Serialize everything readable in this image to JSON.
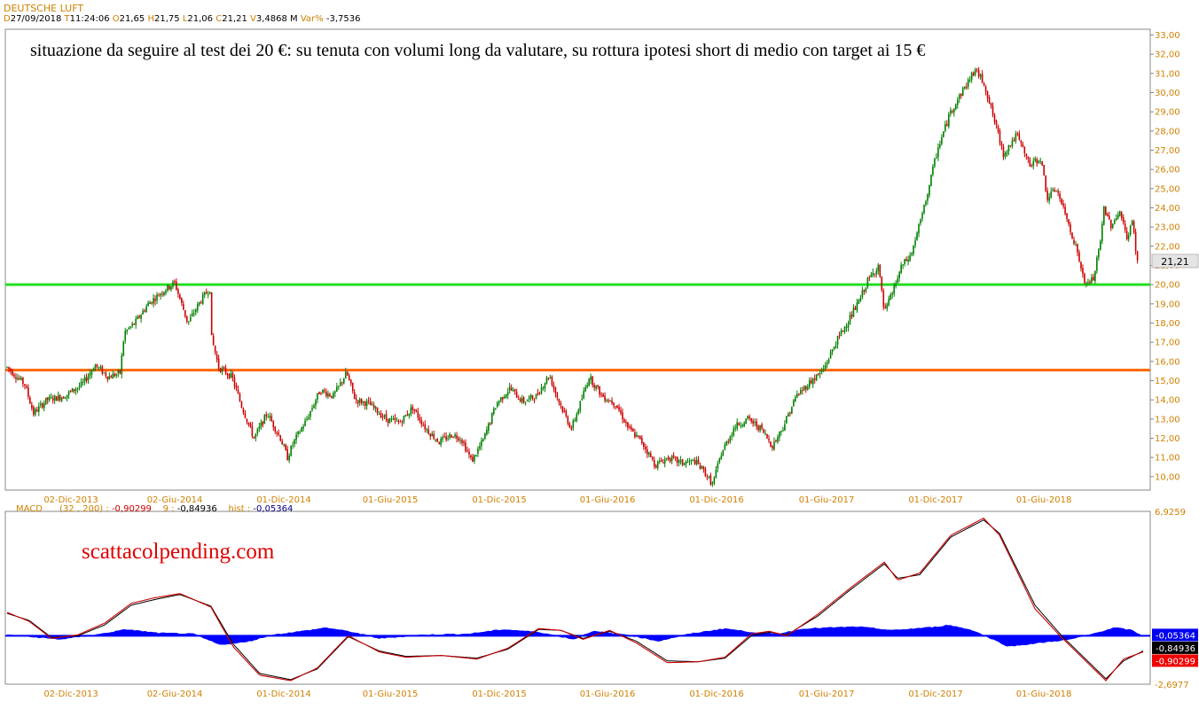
{
  "header": {
    "symbol": "DEUTSCHE LUFT",
    "date_key": "D",
    "date": "27/09/2018",
    "time_key": "T",
    "time": "11:24:06",
    "open_key": "O",
    "open": "21,65",
    "high_key": "H",
    "high": "21,75",
    "low_key": "L",
    "low": "21,06",
    "close_key": "C",
    "close": "21,21",
    "volume_key": "V",
    "volume": "3,4868 M",
    "var_key": "Var%",
    "var": "-3,7536"
  },
  "annotations": {
    "main_text": "situazione da seguire al test dei 20 €: su tenuta con volumi long da valutare, su rottura ipotesi short di medio con target ai 15 €",
    "watermark": "scattacolpending.com"
  },
  "colors": {
    "up_candle": "#008000",
    "down_candle": "#cc0000",
    "support_line": "#22dd22",
    "resistance_line": "#ff6600",
    "histogram": "#0000ff",
    "macd_line": "#cc0000",
    "signal_line": "#000000",
    "axis_text": "#d08000"
  },
  "chart_data": [
    {
      "type": "line",
      "name": "price",
      "x_labels": [
        "02-Dic-2013",
        "02-Giu-2014",
        "01-Dic-2014",
        "01-Giu-2015",
        "01-Dic-2015",
        "01-Giu-2016",
        "01-Dic-2016",
        "01-Giu-2017",
        "01-Dic-2017",
        "01-Giu-2018"
      ],
      "y_ticks": [
        "10,00",
        "11,00",
        "12,00",
        "13,00",
        "14,00",
        "15,00",
        "16,00",
        "17,00",
        "18,00",
        "19,00",
        "20,00",
        "21,00",
        "22,00",
        "23,00",
        "24,00",
        "25,00",
        "26,00",
        "27,00",
        "28,00",
        "29,00",
        "30,00",
        "31,00",
        "32,00",
        "33,00"
      ],
      "ylim": [
        9.3,
        33.3
      ],
      "last_price_label": "21,21",
      "last_price": 21.21,
      "horizontal_levels": [
        {
          "label": "support",
          "value": 20.0
        },
        {
          "label": "resistance",
          "value": 15.55
        }
      ],
      "keypoints": [
        [
          0,
          15.7
        ],
        [
          20,
          14.8
        ],
        [
          30,
          13.3
        ],
        [
          45,
          14.0
        ],
        [
          65,
          14.2
        ],
        [
          85,
          14.8
        ],
        [
          100,
          15.8
        ],
        [
          115,
          15.2
        ],
        [
          128,
          15.4
        ],
        [
          133,
          17.5
        ],
        [
          145,
          18.0
        ],
        [
          160,
          19.0
        ],
        [
          175,
          19.6
        ],
        [
          190,
          20.1
        ],
        [
          205,
          18.0
        ],
        [
          220,
          19.2
        ],
        [
          230,
          19.8
        ],
        [
          232,
          17.2
        ],
        [
          240,
          15.7
        ],
        [
          255,
          15.2
        ],
        [
          265,
          13.8
        ],
        [
          280,
          12.0
        ],
        [
          295,
          13.3
        ],
        [
          310,
          12.0
        ],
        [
          318,
          11.0
        ],
        [
          325,
          11.8
        ],
        [
          340,
          13.0
        ],
        [
          355,
          14.5
        ],
        [
          370,
          14.2
        ],
        [
          385,
          15.4
        ],
        [
          395,
          14.0
        ],
        [
          410,
          13.8
        ],
        [
          430,
          13.0
        ],
        [
          445,
          12.8
        ],
        [
          460,
          13.6
        ],
        [
          475,
          12.5
        ],
        [
          490,
          11.8
        ],
        [
          505,
          12.2
        ],
        [
          515,
          12.0
        ],
        [
          527,
          10.8
        ],
        [
          540,
          11.9
        ],
        [
          555,
          13.8
        ],
        [
          570,
          14.6
        ],
        [
          585,
          13.9
        ],
        [
          600,
          14.2
        ],
        [
          615,
          15.3
        ],
        [
          625,
          14.0
        ],
        [
          640,
          12.5
        ],
        [
          650,
          13.8
        ],
        [
          660,
          15.2
        ],
        [
          675,
          14.2
        ],
        [
          690,
          13.8
        ],
        [
          705,
          12.5
        ],
        [
          720,
          11.8
        ],
        [
          735,
          10.6
        ],
        [
          750,
          11.0
        ],
        [
          765,
          10.7
        ],
        [
          780,
          10.8
        ],
        [
          790,
          10.3
        ],
        [
          800,
          9.6
        ],
        [
          810,
          11.2
        ],
        [
          825,
          12.6
        ],
        [
          840,
          13.0
        ],
        [
          855,
          12.5
        ],
        [
          868,
          11.6
        ],
        [
          880,
          12.6
        ],
        [
          895,
          14.2
        ],
        [
          910,
          14.9
        ],
        [
          925,
          15.5
        ],
        [
          940,
          17.0
        ],
        [
          955,
          18.2
        ],
        [
          965,
          19.0
        ],
        [
          975,
          20.1
        ],
        [
          988,
          21.0
        ],
        [
          995,
          18.5
        ],
        [
          1005,
          19.7
        ],
        [
          1015,
          21.0
        ],
        [
          1025,
          21.5
        ],
        [
          1040,
          24.0
        ],
        [
          1055,
          27.0
        ],
        [
          1070,
          29.0
        ],
        [
          1085,
          30.2
        ],
        [
          1098,
          31.2
        ],
        [
          1108,
          30.5
        ],
        [
          1120,
          28.5
        ],
        [
          1130,
          26.8
        ],
        [
          1145,
          27.8
        ],
        [
          1160,
          26.2
        ],
        [
          1172,
          26.6
        ],
        [
          1180,
          24.5
        ],
        [
          1190,
          25.0
        ],
        [
          1205,
          23.0
        ],
        [
          1215,
          21.5
        ],
        [
          1222,
          20.0
        ],
        [
          1232,
          20.3
        ],
        [
          1240,
          22.2
        ],
        [
          1244,
          24.0
        ],
        [
          1252,
          23.1
        ],
        [
          1262,
          23.8
        ],
        [
          1270,
          22.4
        ],
        [
          1276,
          23.3
        ],
        [
          1282,
          21.2
        ]
      ]
    },
    {
      "type": "line",
      "name": "MACD",
      "label": "MACD",
      "params": "(32 , 200) :",
      "macd_value": "-0,90299",
      "signal_key": "9 :",
      "signal_value": "-0,84936",
      "hist_key": "hist :",
      "hist_value": "-0,05364",
      "y_ticks": [
        "6,9259",
        "-2,6977"
      ],
      "ylim": [
        -2.7,
        6.93
      ],
      "zero_value": 0,
      "macd_keypoints": [
        [
          0,
          1.3
        ],
        [
          25,
          0.8
        ],
        [
          50,
          -0.15
        ],
        [
          80,
          0.05
        ],
        [
          110,
          0.7
        ],
        [
          140,
          1.8
        ],
        [
          165,
          2.1
        ],
        [
          195,
          2.35
        ],
        [
          230,
          1.6
        ],
        [
          255,
          -0.6
        ],
        [
          285,
          -2.2
        ],
        [
          320,
          -2.5
        ],
        [
          350,
          -1.8
        ],
        [
          385,
          0.0
        ],
        [
          420,
          -0.9
        ],
        [
          450,
          -1.2
        ],
        [
          490,
          -1.1
        ],
        [
          530,
          -1.3
        ],
        [
          565,
          -0.7
        ],
        [
          600,
          0.4
        ],
        [
          625,
          0.3
        ],
        [
          650,
          -0.2
        ],
        [
          680,
          0.3
        ],
        [
          710,
          -0.4
        ],
        [
          745,
          -1.5
        ],
        [
          780,
          -1.45
        ],
        [
          810,
          -1.2
        ],
        [
          840,
          0.1
        ],
        [
          860,
          0.25
        ],
        [
          880,
          0.0
        ],
        [
          915,
          1.2
        ],
        [
          950,
          2.6
        ],
        [
          990,
          4.1
        ],
        [
          1005,
          3.1
        ],
        [
          1030,
          3.5
        ],
        [
          1065,
          5.6
        ],
        [
          1102,
          6.55
        ],
        [
          1120,
          5.6
        ],
        [
          1160,
          1.5
        ],
        [
          1190,
          -0.1
        ],
        [
          1215,
          -1.3
        ],
        [
          1240,
          -2.5
        ],
        [
          1260,
          -1.3
        ],
        [
          1282,
          -0.9
        ]
      ],
      "signal_keypoints": [
        [
          0,
          1.25
        ],
        [
          25,
          0.85
        ],
        [
          50,
          -0.1
        ],
        [
          80,
          0.0
        ],
        [
          110,
          0.6
        ],
        [
          140,
          1.7
        ],
        [
          165,
          2.0
        ],
        [
          195,
          2.3
        ],
        [
          230,
          1.65
        ],
        [
          255,
          -0.45
        ],
        [
          285,
          -2.1
        ],
        [
          320,
          -2.45
        ],
        [
          350,
          -1.85
        ],
        [
          385,
          -0.05
        ],
        [
          420,
          -0.85
        ],
        [
          450,
          -1.15
        ],
        [
          490,
          -1.1
        ],
        [
          530,
          -1.25
        ],
        [
          565,
          -0.75
        ],
        [
          600,
          0.35
        ],
        [
          625,
          0.3
        ],
        [
          650,
          -0.15
        ],
        [
          680,
          0.25
        ],
        [
          710,
          -0.3
        ],
        [
          745,
          -1.4
        ],
        [
          780,
          -1.45
        ],
        [
          810,
          -1.25
        ],
        [
          840,
          0.0
        ],
        [
          860,
          0.2
        ],
        [
          880,
          0.05
        ],
        [
          915,
          1.1
        ],
        [
          950,
          2.5
        ],
        [
          990,
          4.0
        ],
        [
          1005,
          3.2
        ],
        [
          1030,
          3.4
        ],
        [
          1065,
          5.5
        ],
        [
          1102,
          6.45
        ],
        [
          1120,
          5.7
        ],
        [
          1160,
          1.7
        ],
        [
          1190,
          0.0
        ],
        [
          1215,
          -1.2
        ],
        [
          1240,
          -2.4
        ],
        [
          1260,
          -1.4
        ],
        [
          1282,
          -0.85
        ]
      ],
      "hist_keypoints": [
        [
          0,
          0.05
        ],
        [
          60,
          -0.2
        ],
        [
          100,
          0.05
        ],
        [
          135,
          0.35
        ],
        [
          170,
          0.15
        ],
        [
          210,
          0.1
        ],
        [
          240,
          -0.5
        ],
        [
          270,
          -0.35
        ],
        [
          300,
          0.05
        ],
        [
          340,
          0.3
        ],
        [
          360,
          0.45
        ],
        [
          390,
          0.2
        ],
        [
          420,
          -0.15
        ],
        [
          470,
          0.05
        ],
        [
          520,
          0.1
        ],
        [
          560,
          0.35
        ],
        [
          600,
          0.2
        ],
        [
          640,
          -0.2
        ],
        [
          660,
          0.25
        ],
        [
          700,
          0.05
        ],
        [
          735,
          -0.3
        ],
        [
          770,
          0.1
        ],
        [
          810,
          0.4
        ],
        [
          840,
          0.2
        ],
        [
          870,
          0.1
        ],
        [
          900,
          0.4
        ],
        [
          960,
          0.5
        ],
        [
          1000,
          0.3
        ],
        [
          1050,
          0.5
        ],
        [
          1062,
          0.6
        ],
        [
          1090,
          0.3
        ],
        [
          1130,
          -0.6
        ],
        [
          1165,
          -0.4
        ],
        [
          1200,
          -0.2
        ],
        [
          1225,
          0.1
        ],
        [
          1250,
          0.45
        ],
        [
          1270,
          0.3
        ],
        [
          1282,
          -0.05
        ]
      ]
    }
  ]
}
